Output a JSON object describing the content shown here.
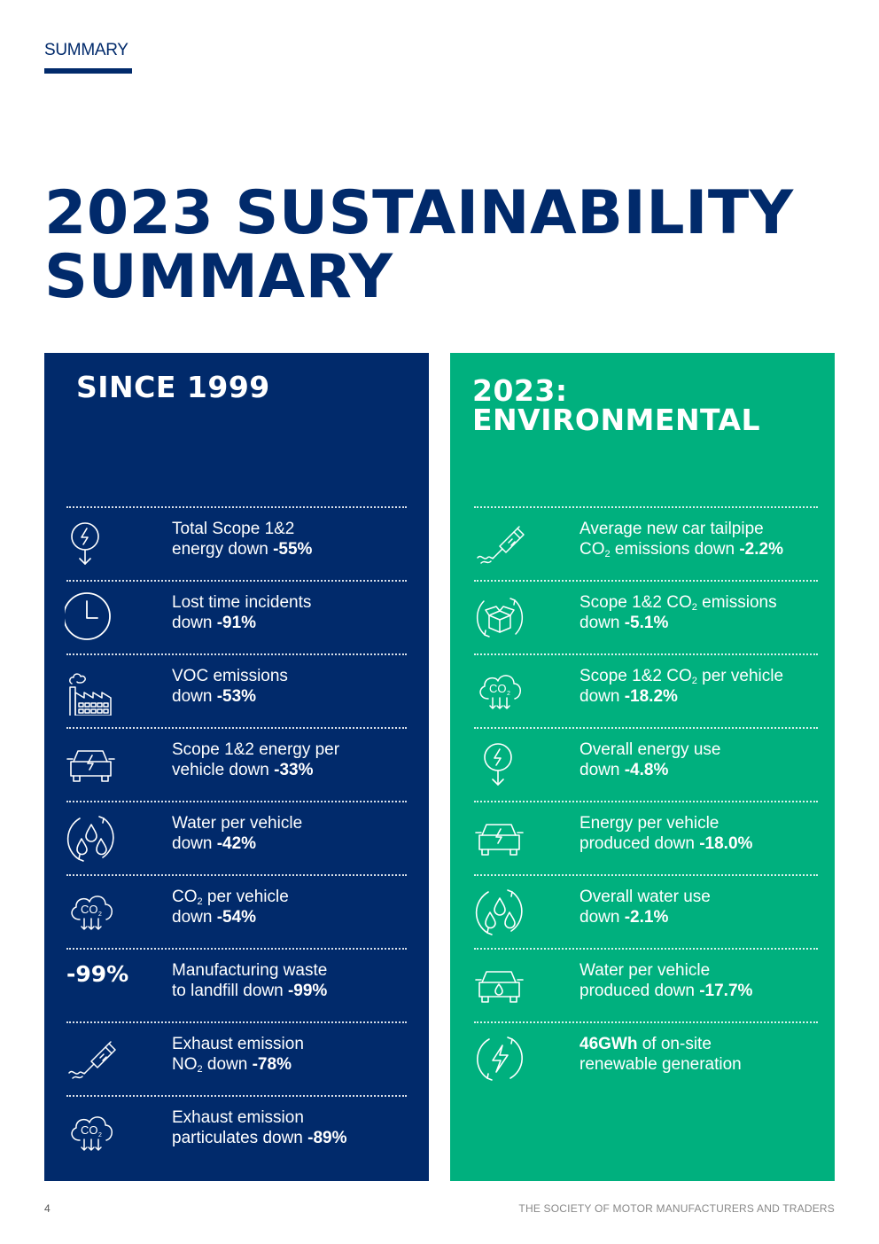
{
  "header": {
    "section_label": "SUMMARY",
    "title": "2023 SUSTAINABILITY SUMMARY"
  },
  "left_panel": {
    "title": "SINCE 1999",
    "items": [
      {
        "icon": "energy-down-icon",
        "pre": "Total Scope 1&2",
        "line2": "energy down ",
        "value": "-55%"
      },
      {
        "icon": "clock-icon",
        "pre": "Lost time incidents",
        "line2": "down ",
        "value": "-91%"
      },
      {
        "icon": "factory-icon",
        "pre": "VOC emissions",
        "line2": "down ",
        "value": "-53%"
      },
      {
        "icon": "car-energy-icon",
        "pre": "Scope 1&2 energy per",
        "line2": "vehicle down ",
        "value": "-33%"
      },
      {
        "icon": "water-cycle-icon",
        "pre": "Water per vehicle",
        "line2": "down ",
        "value": "-42%"
      },
      {
        "icon": "co2-cloud-icon",
        "pre_a": "CO",
        "pre_sub": "2",
        "pre_b": " per vehicle",
        "line2": "down ",
        "value": "-54%"
      },
      {
        "big": "-99%",
        "pre": "Manufacturing waste",
        "line2": "to landfill down ",
        "value": "-99%"
      },
      {
        "icon": "exhaust-icon",
        "pre": "Exhaust emission",
        "line2_a": "NO",
        "line2_sub": "2",
        "line2_b": " down ",
        "value": "-78%"
      },
      {
        "icon": "co2-cloud-icon",
        "pre": "Exhaust emission",
        "line2": "particulates down ",
        "value": "-89%"
      }
    ]
  },
  "right_panel": {
    "title_line1": "2023:",
    "title_line2": "ENVIRONMENTAL",
    "items": [
      {
        "icon": "exhaust-icon",
        "pre": "Average new car tailpipe",
        "line2_a": "CO",
        "line2_sub": "2",
        "line2_b": " emissions down ",
        "value": "-2.2%"
      },
      {
        "icon": "box-cycle-icon",
        "pre_a": "Scope 1&2 CO",
        "pre_sub": "2",
        "pre_b": " emissions",
        "line2": "down ",
        "value": "-5.1%"
      },
      {
        "icon": "co2-cloud-icon",
        "pre_a": "Scope 1&2 CO",
        "pre_sub": "2",
        "pre_b": " per vehicle",
        "line2": "down ",
        "value": "-18.2%"
      },
      {
        "icon": "energy-down-icon",
        "pre": "Overall energy use",
        "line2": "down ",
        "value": "-4.8%"
      },
      {
        "icon": "car-energy-icon",
        "pre": "Energy per vehicle",
        "line2": "produced down ",
        "value": "-18.0%"
      },
      {
        "icon": "water-cycle-icon",
        "pre": "Overall water use",
        "line2": "down ",
        "value": "-2.1%"
      },
      {
        "icon": "car-water-icon",
        "pre": "Water per vehicle",
        "line2": "produced down ",
        "value": "-17.7%"
      },
      {
        "icon": "renewable-energy-icon",
        "value_first": "46GWh",
        "pre_rest": " of on-site",
        "line2": "renewable generation"
      }
    ]
  },
  "footer": {
    "page_number": "4",
    "organisation": "THE SOCIETY OF MOTOR MANUFACTURERS AND TRADERS"
  }
}
